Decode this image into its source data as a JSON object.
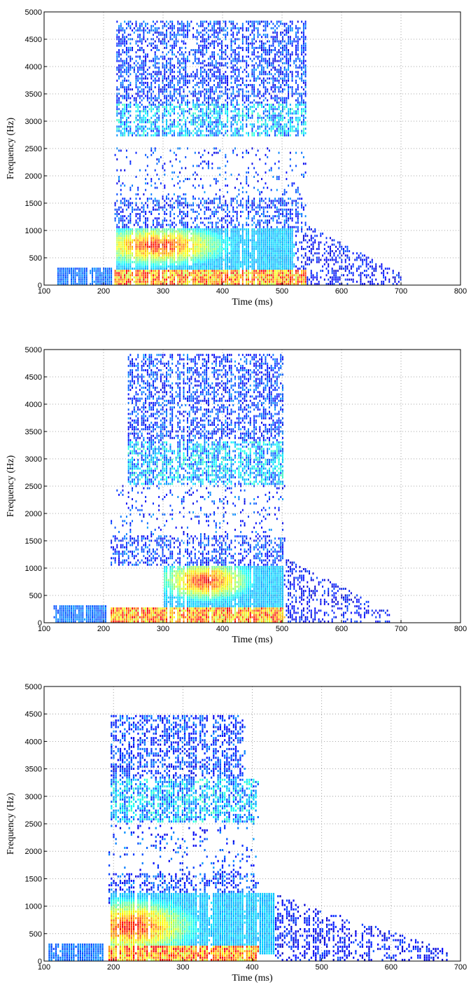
{
  "chart_data": [
    {
      "type": "heatmap",
      "subtype": "spectrogram",
      "title": "",
      "xlabel": "Time (ms)",
      "ylabel": "Frequency (Hz)",
      "xlim": [
        100,
        800
      ],
      "ylim": [
        0,
        5000
      ],
      "xticks": [
        "100",
        "200",
        "300",
        "400",
        "500",
        "600",
        "700",
        "800"
      ],
      "yticks": [
        "0",
        "500",
        "1000",
        "1500",
        "2000",
        "2500",
        "3000",
        "3500",
        "4000",
        "4500",
        "5000"
      ],
      "grid": true,
      "colormap": "jet",
      "features": {
        "pre_voicing": {
          "x": [
            120,
            215
          ],
          "y": [
            0,
            300
          ]
        },
        "onset_ms": 217,
        "f1_energy": {
          "x": [
            220,
            520
          ],
          "y": [
            200,
            1000
          ],
          "peak": [
            290,
            700
          ]
        },
        "f2_band": {
          "x": [
            220,
            540
          ],
          "y": [
            2700,
            3300
          ]
        },
        "upper_band": {
          "x": [
            220,
            540
          ],
          "y": [
            3300,
            4800
          ]
        },
        "tail": {
          "x": [
            520,
            700
          ],
          "y": [
            0,
            1200
          ]
        },
        "offset_ms": 540
      }
    },
    {
      "type": "heatmap",
      "subtype": "spectrogram",
      "title": "",
      "xlabel": "Time (ms)",
      "ylabel": "Frequency (Hz)",
      "xlim": [
        100,
        800
      ],
      "ylim": [
        0,
        5000
      ],
      "xticks": [
        "100",
        "200",
        "300",
        "400",
        "500",
        "600",
        "700",
        "800"
      ],
      "yticks": [
        "0",
        "500",
        "1000",
        "1500",
        "2000",
        "2500",
        "3000",
        "3500",
        "4000",
        "4500",
        "5000"
      ],
      "grid": true,
      "colormap": "jet",
      "features": {
        "pre_voicing": {
          "x": [
            115,
            205
          ],
          "y": [
            0,
            300
          ]
        },
        "onset_ms": 210,
        "f1_energy": {
          "x": [
            300,
            500
          ],
          "y": [
            200,
            1000
          ],
          "peak": [
            370,
            750
          ]
        },
        "f2_band": {
          "x": [
            240,
            500
          ],
          "y": [
            2500,
            3300
          ]
        },
        "upper_band": {
          "x": [
            240,
            500
          ],
          "y": [
            3300,
            4900
          ]
        },
        "tail": {
          "x": [
            500,
            680
          ],
          "y": [
            0,
            1200
          ]
        },
        "offset_ms": 505
      }
    },
    {
      "type": "heatmap",
      "subtype": "spectrogram",
      "title": "",
      "xlabel": "Time (ms)",
      "ylabel": "Frequency (Hz)",
      "xlim": [
        100,
        700
      ],
      "ylim": [
        0,
        5000
      ],
      "xticks": [
        "100",
        "200",
        "300",
        "400",
        "500",
        "600",
        "700"
      ],
      "yticks": [
        "0",
        "500",
        "1000",
        "1500",
        "2000",
        "2500",
        "3000",
        "3500",
        "4000",
        "4500",
        "5000"
      ],
      "grid": true,
      "colormap": "jet",
      "features": {
        "pre_voicing": {
          "x": [
            105,
            185
          ],
          "y": [
            0,
            300
          ]
        },
        "onset_ms": 190,
        "f1_energy": {
          "x": [
            195,
            430
          ],
          "y": [
            100,
            1200
          ],
          "peak": [
            225,
            600
          ]
        },
        "f2_band": {
          "x": [
            195,
            410
          ],
          "y": [
            2500,
            3300
          ]
        },
        "upper_band": {
          "x": [
            195,
            390
          ],
          "y": [
            3300,
            4450
          ]
        },
        "tail": {
          "x": [
            430,
            680
          ],
          "y": [
            0,
            1200
          ]
        },
        "offset_ms": 410
      }
    }
  ]
}
